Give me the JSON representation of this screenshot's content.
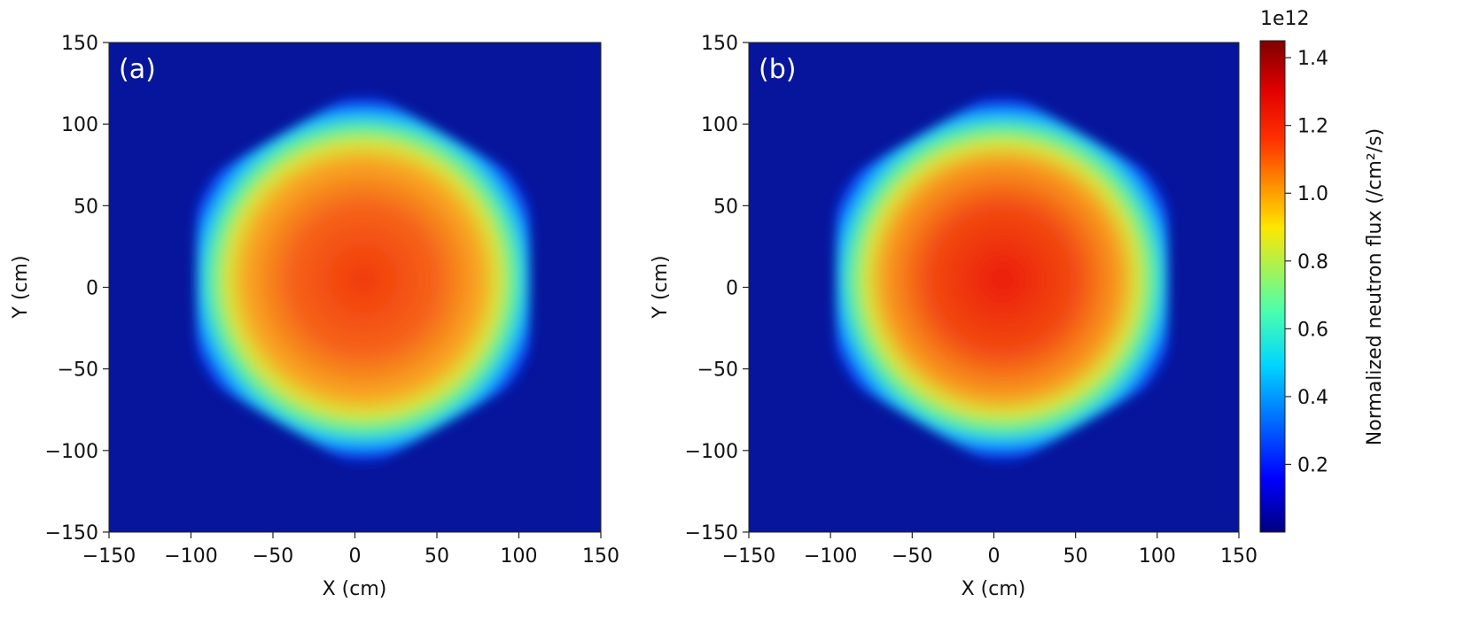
{
  "chart_data": [
    {
      "type": "heatmap",
      "panel_label": "(a)",
      "xlabel": "X (cm)",
      "ylabel": "Y (cm)",
      "xlim": [
        -150,
        150
      ],
      "ylim": [
        -150,
        150
      ],
      "xticks": [
        -150,
        -100,
        -50,
        0,
        50,
        100,
        150
      ],
      "yticks": [
        -150,
        -100,
        -50,
        0,
        50,
        100,
        150
      ],
      "xtick_labels": [
        "−150",
        "−100",
        "−50",
        "0",
        "50",
        "100",
        "150"
      ],
      "ytick_labels": [
        "−150",
        "−100",
        "−50",
        "0",
        "50",
        "100",
        "150"
      ],
      "core_shape": "hexagonal",
      "core_center": [
        5,
        5
      ],
      "core_boundary_radius": 105,
      "peak_value": 1.3,
      "edge_value": 0.05
    },
    {
      "type": "heatmap",
      "panel_label": "(b)",
      "xlabel": "X (cm)",
      "ylabel": "Y (cm)",
      "xlim": [
        -150,
        150
      ],
      "ylim": [
        -150,
        150
      ],
      "xticks": [
        -150,
        -100,
        -50,
        0,
        50,
        100,
        150
      ],
      "yticks": [
        -150,
        -100,
        -50,
        0,
        50,
        100,
        150
      ],
      "xtick_labels": [
        "−150",
        "−100",
        "−50",
        "0",
        "50",
        "100",
        "150"
      ],
      "ytick_labels": [
        "−150",
        "−100",
        "−50",
        "0",
        "50",
        "100",
        "150"
      ],
      "core_shape": "hexagonal",
      "core_center": [
        5,
        5
      ],
      "core_boundary_radius": 105,
      "peak_value": 1.35,
      "edge_value": 0.05
    }
  ],
  "colorbar": {
    "label": "Normalized neutron flux (/cm²/s)",
    "multiplier": "1e12",
    "range": [
      0,
      1.45
    ],
    "ticks": [
      0.2,
      0.4,
      0.6,
      0.8,
      1.0,
      1.2,
      1.4
    ],
    "tick_labels": [
      "0.2",
      "0.4",
      "0.6",
      "0.8",
      "1.0",
      "1.2",
      "1.4"
    ],
    "colormap": "jet"
  },
  "colors": {
    "jet_stops": [
      "#00007f",
      "#0000ff",
      "#007fff",
      "#00ffff",
      "#7fff7f",
      "#ffff00",
      "#ff7f00",
      "#ff0000",
      "#7f0000"
    ]
  }
}
